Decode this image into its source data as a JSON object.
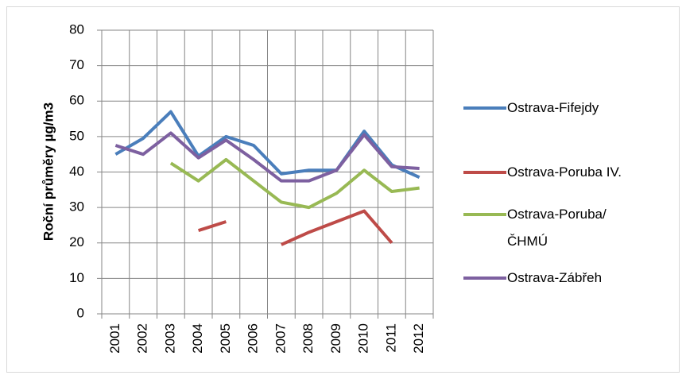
{
  "chart_data": {
    "type": "line",
    "y_label": "Roční průměry µg/m3",
    "categories": [
      "2001",
      "2002",
      "2003",
      "2004",
      "2005",
      "2006",
      "2007",
      "2008",
      "2009",
      "2010",
      "2011",
      "2012"
    ],
    "series": [
      {
        "name": "Ostrava-Fifejdy",
        "color": "#4a7ebb",
        "values": [
          45,
          49.5,
          57,
          44.5,
          50,
          47.5,
          39.5,
          40.5,
          40.5,
          51.5,
          42,
          38.5
        ]
      },
      {
        "name": "Ostrava-Poruba IV.",
        "color": "#be4b48",
        "values": [
          null,
          null,
          null,
          23.5,
          26,
          null,
          19.5,
          23,
          26,
          29,
          20,
          null
        ]
      },
      {
        "name": "Ostrava-Poruba/ČHMÚ",
        "color": "#98b954",
        "values": [
          null,
          null,
          42.5,
          37.5,
          43.5,
          37.5,
          31.5,
          30,
          34,
          40.5,
          34.5,
          35.5
        ]
      },
      {
        "name": "Ostrava-Zábřeh",
        "color": "#7d60a0",
        "values": [
          47.5,
          45,
          51,
          44,
          49,
          43.5,
          37.5,
          37.5,
          40.5,
          50.5,
          41.5,
          41
        ]
      }
    ],
    "ylim": [
      0,
      80
    ],
    "yticks": [
      0,
      10,
      20,
      30,
      40,
      50,
      60,
      70,
      80
    ],
    "grid": true,
    "legend": "right"
  }
}
